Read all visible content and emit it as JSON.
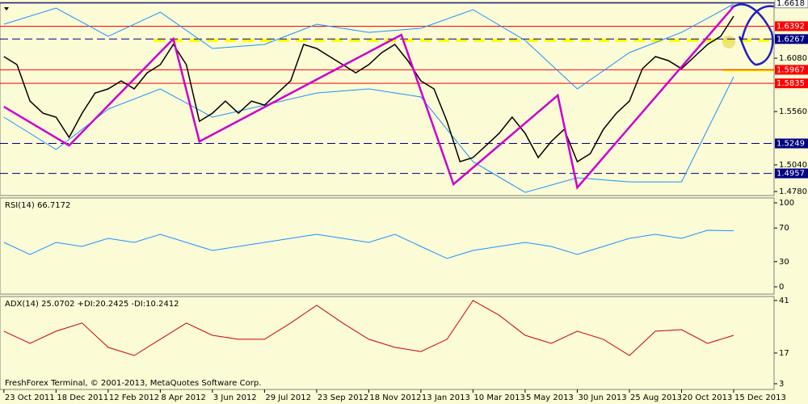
{
  "chart_data": [
    {
      "type": "line",
      "xlim": [
        -0.6,
        118.2
      ],
      "ylim": [
        1.4741,
        1.6624
      ],
      "yticks": [
        {
          "value": 1.608,
          "label": "1.6080"
        },
        {
          "value": 1.556,
          "label": "1.5560"
        },
        {
          "value": 1.504,
          "label": "1.5040"
        },
        {
          "value": 1.478,
          "label": "1.4780"
        }
      ],
      "levels": [
        {
          "value": 1.6618,
          "color": "#ffffff",
          "text_color": "#000000",
          "style": "solid"
        },
        {
          "value": 1.6392,
          "color": "#ff0000",
          "text_color": "#ffffff",
          "style": "solid"
        },
        {
          "value": 1.6267,
          "color": "#000080",
          "text_color": "#ffffff",
          "style": "dashed"
        },
        {
          "value": 1.5967,
          "color": "#ff0000",
          "text_color": "#ffffff",
          "style": "solid"
        },
        {
          "value": 1.5835,
          "color": "#ff0000",
          "text_color": "#ffffff",
          "style": "solid"
        },
        {
          "value": 1.5249,
          "color": "#000080",
          "text_color": "#ffffff",
          "style": "dashed"
        },
        {
          "value": 1.4957,
          "color": "#000080",
          "text_color": "#ffffff",
          "style": "dashed"
        }
      ],
      "series": [
        {
          "color": "#1e90ff",
          "width": 1,
          "x": [
            0,
            8,
            16,
            24,
            32,
            40,
            48,
            56,
            64,
            72,
            80,
            88,
            96,
            104,
            112
          ],
          "values": [
            1.6411,
            1.6569,
            1.6293,
            1.6529,
            1.6175,
            1.6214,
            1.6411,
            1.6332,
            1.6372,
            1.6553,
            1.6253,
            1.5781,
            1.6135,
            1.6332,
            1.6608
          ]
        },
        {
          "color": "#1e90ff",
          "width": 1,
          "x": [
            0,
            8,
            16,
            24,
            32,
            40,
            48,
            56,
            64,
            72,
            80,
            88,
            96,
            104,
            112
          ],
          "values": [
            1.5505,
            1.519,
            1.5584,
            1.5781,
            1.5505,
            1.5623,
            1.5741,
            1.5781,
            1.5702,
            1.5071,
            1.4772,
            1.4914,
            1.4874,
            1.4874,
            1.5899
          ]
        },
        {
          "color": "#000000",
          "width": 1.5,
          "x": [
            0,
            2,
            4,
            6,
            8,
            10,
            12,
            14,
            16,
            18,
            20,
            22,
            24,
            26,
            28,
            30,
            32,
            34,
            36,
            38,
            40,
            42,
            44,
            46,
            48,
            50,
            52,
            54,
            56,
            58,
            60,
            62,
            64,
            66,
            68,
            70,
            72,
            74,
            76,
            78,
            80,
            82,
            84,
            86,
            88,
            90,
            92,
            94,
            96,
            98,
            100,
            102,
            104,
            106,
            108,
            110,
            112
          ],
          "values": [
            1.6096,
            1.6017,
            1.5662,
            1.5544,
            1.5505,
            1.5308,
            1.5544,
            1.5741,
            1.5781,
            1.5859,
            1.5781,
            1.5938,
            1.6017,
            1.6214,
            1.6017,
            1.5465,
            1.5544,
            1.5662,
            1.5544,
            1.5662,
            1.5623,
            1.5741,
            1.5859,
            1.6214,
            1.6175,
            1.6096,
            1.6017,
            1.5938,
            1.6017,
            1.6135,
            1.6214,
            1.6056,
            1.5859,
            1.5781,
            1.5465,
            1.5071,
            1.5111,
            1.5229,
            1.5347,
            1.5505,
            1.5347,
            1.5111,
            1.5268,
            1.5386,
            1.5071,
            1.515,
            1.5386,
            1.5544,
            1.5662,
            1.5978,
            1.6096,
            1.6056,
            1.5978,
            1.6096,
            1.6214,
            1.6293,
            1.649
          ]
        },
        {
          "color": "#cc00cc",
          "width": 2.5,
          "x": [
            0,
            10,
            26,
            30,
            61,
            69,
            85,
            88,
            112
          ],
          "values": [
            1.5607,
            1.5229,
            1.6269,
            1.5268,
            1.6308,
            1.4851,
            1.5718,
            1.4819,
            1.6584
          ]
        }
      ]
    },
    {
      "type": "line",
      "title": "RSI(14) 66.7172",
      "xlim": [
        -0.6,
        118.2
      ],
      "ylim": [
        -8.7,
        105.8
      ],
      "yticks": [
        100,
        70,
        30,
        0
      ],
      "series": [
        {
          "color": "#1e90ff",
          "width": 1,
          "x": [
            0,
            4,
            8,
            12,
            16,
            20,
            24,
            28,
            32,
            36,
            40,
            44,
            48,
            52,
            56,
            60,
            64,
            68,
            72,
            76,
            80,
            84,
            88,
            92,
            96,
            100,
            104,
            108,
            112
          ],
          "values": [
            52.9,
            38.5,
            52.9,
            48.1,
            57.7,
            52.9,
            62.5,
            52.9,
            43.3,
            48.1,
            52.9,
            57.7,
            62.5,
            57.7,
            52.9,
            62.5,
            48.1,
            33.7,
            43.3,
            48.1,
            52.9,
            48.1,
            38.5,
            48.1,
            57.7,
            62.5,
            57.7,
            67.3,
            66.7
          ]
        }
      ]
    },
    {
      "type": "line",
      "title": "ADX(14) 25.0702 +DI:20.2425 -DI:10.2412",
      "annotation": "FreshForex Terminal, © 2001-2013, MetaQuotes Software Corp.",
      "xlim": [
        -0.6,
        118.2
      ],
      "ylim": [
        0.4,
        42.8
      ],
      "yticks": [
        41,
        17,
        3
      ],
      "xticks": [
        {
          "value": 0,
          "label": "23 Oct 2011"
        },
        {
          "value": 8,
          "label": "18 Dec 2011"
        },
        {
          "value": 16,
          "label": "12 Feb 2012"
        },
        {
          "value": 24,
          "label": "8 Apr 2012"
        },
        {
          "value": 32,
          "label": "3 Jun 2012"
        },
        {
          "value": 40,
          "label": "29 Jul 2012"
        },
        {
          "value": 48,
          "label": "23 Sep 2012"
        },
        {
          "value": 56,
          "label": "18 Nov 2012"
        },
        {
          "value": 64,
          "label": "13 Jan 2013"
        },
        {
          "value": 72,
          "label": "10 Mar 2013"
        },
        {
          "value": 80,
          "label": "5 May 2013"
        },
        {
          "value": 88,
          "label": "30 Jun 2013"
        },
        {
          "value": 96,
          "label": "25 Aug 2013"
        },
        {
          "value": 104,
          "label": "20 Oct 2013"
        },
        {
          "value": 112,
          "label": "15 Dec 2013"
        }
      ],
      "series": [
        {
          "color": "#cc0000",
          "width": 1,
          "x": [
            0,
            4,
            8,
            12,
            16,
            20,
            24,
            28,
            32,
            36,
            40,
            44,
            48,
            52,
            56,
            60,
            64,
            68,
            72,
            76,
            80,
            84,
            88,
            92,
            96,
            100,
            104,
            108,
            112
          ],
          "values": [
            27.0,
            21.4,
            27.0,
            30.7,
            19.6,
            15.9,
            23.3,
            30.7,
            25.1,
            23.3,
            23.3,
            30.7,
            38.8,
            30.7,
            23.3,
            19.6,
            17.7,
            23.3,
            41.0,
            34.3,
            25.1,
            21.4,
            27.0,
            23.3,
            15.9,
            27.0,
            27.7,
            21.4,
            25.1
          ]
        }
      ]
    }
  ]
}
